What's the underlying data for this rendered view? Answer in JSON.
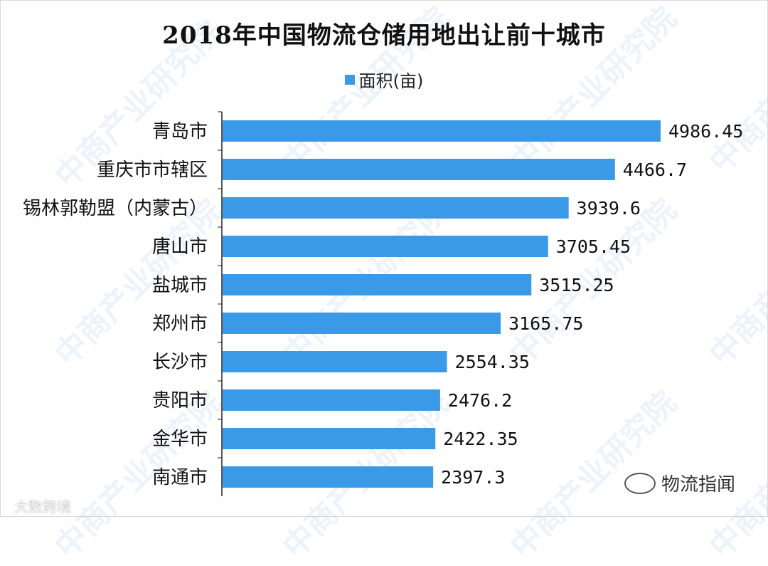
{
  "chart_data": {
    "type": "bar",
    "orientation": "horizontal",
    "title": "2018年中国物流仓储用地出让前十城市",
    "legend": {
      "position": "top-center",
      "entries": [
        "面积(亩)"
      ]
    },
    "categories": [
      "青岛市",
      "重庆市市辖区",
      "锡林郭勒盟（内蒙古）",
      "唐山市",
      "盐城市",
      "郑州市",
      "长沙市",
      "贵阳市",
      "金华市",
      "南通市"
    ],
    "values": [
      4986.45,
      4466.7,
      3939.6,
      3705.45,
      3515.25,
      3165.75,
      2554.35,
      2476.2,
      2422.35,
      2397.3
    ],
    "value_labels": [
      "4986.45",
      "4466.7",
      "3939.6",
      "3705.45",
      "3515.25",
      "3165.75",
      "2554.35",
      "2476.2",
      "2422.35",
      "2397.3"
    ],
    "series": [
      {
        "name": "面积(亩)",
        "color": "#3a9ae8"
      }
    ],
    "xlim": [
      0,
      5300
    ],
    "grid": false
  },
  "watermarks": {
    "repeated": "中商产业研究院",
    "corner": "大数跨境",
    "account": "物流指闻"
  },
  "colors": {
    "bar": "#3a9ae8",
    "axis": "#222222"
  }
}
